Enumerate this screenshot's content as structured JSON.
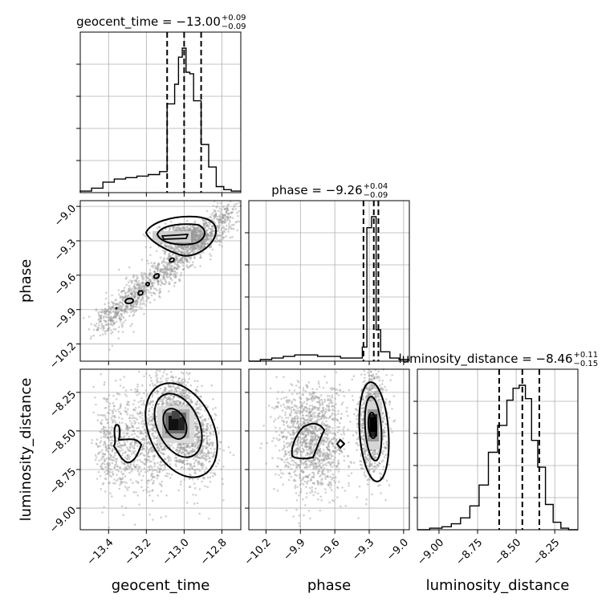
{
  "chart_data": {
    "type": "corner",
    "grid": true,
    "parameters": [
      {
        "name": "geocent_time",
        "label": "geocent_time",
        "range": [
          -13.55,
          -12.7
        ],
        "ticks": [
          -13.4,
          -13.2,
          -13.0,
          -12.8
        ],
        "tick_labels": [
          "−13.4",
          "−13.2",
          "−13.0",
          "−12.8"
        ],
        "title_prefix": "geocent_time = −13.00",
        "title_plus": "+0.09",
        "title_minus": "−0.09",
        "quantiles": [
          -13.09,
          -13.0,
          -12.91
        ],
        "hist_bins": [
          -13.55,
          -13.49,
          -13.43,
          -13.37,
          -13.31,
          -13.25,
          -13.19,
          -13.13,
          -13.09,
          -13.05,
          -13.03,
          -13.01,
          -12.99,
          -12.97,
          -12.95,
          -12.91,
          -12.87,
          -12.83,
          -12.79,
          -12.75,
          -12.7
        ],
        "hist_counts": [
          0.01,
          0.03,
          0.07,
          0.09,
          0.1,
          0.11,
          0.12,
          0.14,
          0.59,
          0.72,
          0.9,
          0.96,
          0.8,
          0.79,
          0.61,
          0.32,
          0.17,
          0.04,
          0.02,
          0.01
        ]
      },
      {
        "name": "phase",
        "label": "phase",
        "range": [
          -10.35,
          -8.95
        ],
        "ticks": [
          -10.2,
          -9.9,
          -9.6,
          -9.3,
          -9.0
        ],
        "tick_labels": [
          "−10.2",
          "−9.9",
          "−9.6",
          "−9.3",
          "−9.0"
        ],
        "title_prefix": "phase = −9.26",
        "title_plus": "+0.04",
        "title_minus": "−0.09",
        "quantiles": [
          -9.35,
          -9.26,
          -9.22
        ],
        "hist_bins": [
          -10.35,
          -10.25,
          -10.15,
          -10.05,
          -9.95,
          -9.85,
          -9.75,
          -9.65,
          -9.55,
          -9.45,
          -9.36,
          -9.32,
          -9.28,
          -9.24,
          -9.2,
          -9.12,
          -9.04,
          -8.95
        ],
        "hist_counts": [
          0.0,
          0.01,
          0.02,
          0.03,
          0.04,
          0.04,
          0.03,
          0.03,
          0.02,
          0.02,
          0.09,
          0.85,
          0.92,
          0.2,
          0.06,
          0.02,
          0.01
        ]
      },
      {
        "name": "luminosity_distance",
        "label": "luminosity_distance",
        "range": [
          -9.14,
          -8.1
        ],
        "ticks": [
          -9.0,
          -8.75,
          -8.5,
          -8.25
        ],
        "tick_labels": [
          "−9.00",
          "−8.75",
          "−8.50",
          "−8.25"
        ],
        "title_prefix": "luminosity_distance = −8.46",
        "title_plus": "+0.11",
        "title_minus": "−0.15",
        "quantiles": [
          -8.61,
          -8.46,
          -8.35
        ],
        "hist_bins": [
          -9.14,
          -9.06,
          -8.98,
          -8.92,
          -8.86,
          -8.8,
          -8.74,
          -8.68,
          -8.62,
          -8.56,
          -8.52,
          -8.48,
          -8.44,
          -8.4,
          -8.36,
          -8.31,
          -8.26,
          -8.21,
          -8.16,
          -8.1
        ],
        "hist_counts": [
          0.0,
          0.01,
          0.02,
          0.04,
          0.08,
          0.16,
          0.3,
          0.52,
          0.7,
          0.87,
          0.95,
          0.97,
          0.88,
          0.6,
          0.42,
          0.17,
          0.05,
          0.01,
          0.0
        ]
      }
    ]
  }
}
